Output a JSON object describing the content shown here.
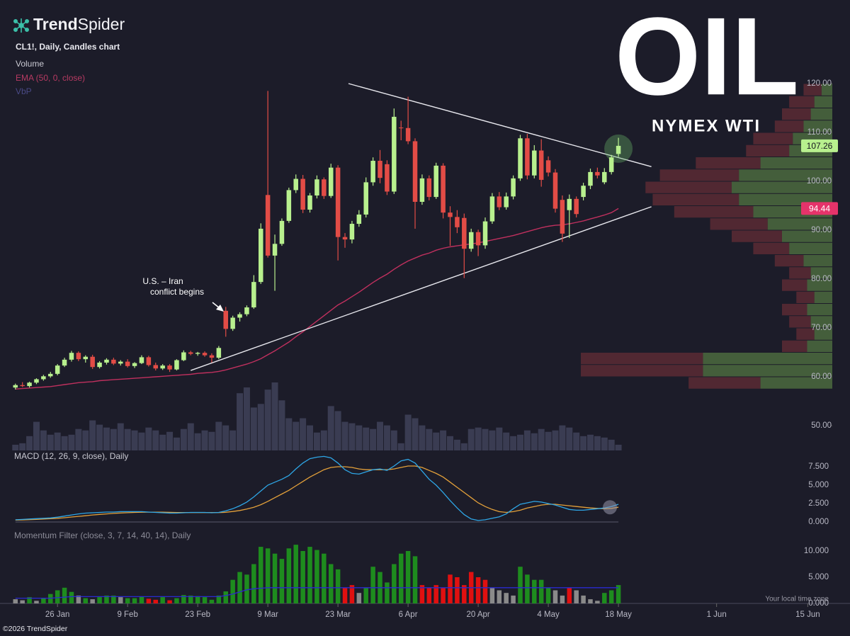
{
  "brand": {
    "bold": "Trend",
    "light": "Spider"
  },
  "badge": {
    "title": "OIL",
    "subtitle": "NYMEX WTI"
  },
  "copyright": "©2026 TrendSpider",
  "timezone_note": "Your local time zone",
  "chart_data": {
    "type": "candlestick",
    "title": "CL1!, Daily, Candles chart",
    "xlim": [
      -2.2,
      116.5
    ],
    "xticks": [
      {
        "value": 6,
        "label": "26 Jan"
      },
      {
        "value": 16,
        "label": "9 Feb"
      },
      {
        "value": 26,
        "label": "23 Feb"
      },
      {
        "value": 36,
        "label": "9 Mar"
      },
      {
        "value": 46,
        "label": "23 Mar"
      },
      {
        "value": 56,
        "label": "6 Apr"
      },
      {
        "value": 66,
        "label": "20 Apr"
      },
      {
        "value": 76,
        "label": "4 May"
      },
      {
        "value": 86,
        "label": "18 May"
      },
      {
        "value": 100,
        "label": "1 Jun"
      },
      {
        "value": 113,
        "label": "15 Jun"
      }
    ],
    "ylim": [
      48,
      128
    ],
    "yticks": [
      {
        "value": 50,
        "label": "50.00"
      },
      {
        "value": 60,
        "label": "60.00"
      },
      {
        "value": 70,
        "label": "70.00"
      },
      {
        "value": 80,
        "label": "80.00"
      },
      {
        "value": 90,
        "label": "90.00"
      },
      {
        "value": 100,
        "label": "100.00"
      },
      {
        "value": 110,
        "label": "110.00"
      },
      {
        "value": 120,
        "label": "120.00"
      }
    ],
    "candles": {
      "up_color": "#b8f08e",
      "down_color": "#e24c46",
      "tag_color": "#b8f08e",
      "open": [
        57.8,
        58.3,
        58.1,
        58.8,
        59.5,
        60.1,
        60.6,
        62.3,
        63.5,
        64.9,
        63.6,
        64.1,
        62.0,
        62.9,
        63.5,
        62.7,
        63.1,
        62.2,
        62.8,
        64.0,
        62.4,
        61.7,
        62.3,
        61.5,
        63.4,
        65.0,
        64.7,
        64.9,
        64.4,
        63.9,
        73.5,
        69.8,
        72.1,
        72.8,
        74.2,
        79.4,
        97.2,
        84.8,
        87.2,
        91.9,
        98.2,
        100.5,
        94.2,
        97.1,
        100.4,
        97.0,
        102.8,
        88.6,
        88.1,
        91.3,
        93.2,
        99.8,
        104.2,
        103.5,
        97.9,
        111.0,
        110.9,
        108.2,
        95.8,
        100.6,
        96.8,
        103.2,
        93.6,
        92.7,
        92.5,
        86.2,
        89.6,
        86.9,
        91.8,
        96.9,
        94.7,
        96.9,
        100.6,
        108.8,
        101.2,
        106.3,
        104.3,
        101.8,
        96.2,
        94.1,
        96.4,
        96.8,
        99.1,
        101.9,
        99.8,
        101.9,
        105.6
      ],
      "high": [
        58.6,
        58.9,
        59.0,
        59.7,
        60.4,
        61.0,
        62.6,
        63.9,
        65.3,
        65.2,
        64.4,
        64.5,
        63.2,
        63.8,
        63.9,
        63.4,
        63.6,
        63.0,
        64.4,
        64.3,
        62.9,
        62.6,
        62.6,
        63.6,
        65.4,
        65.3,
        65.1,
        65.2,
        64.8,
        66.3,
        74.3,
        72.5,
        73.2,
        74.6,
        80.8,
        91.4,
        118.5,
        89.1,
        92.4,
        98.7,
        101.4,
        101.3,
        97.6,
        101.2,
        100.8,
        103.6,
        103.3,
        89.4,
        91.9,
        94.1,
        100.8,
        104.9,
        106.4,
        104.3,
        114.9,
        112.4,
        117.3,
        108.8,
        101.4,
        101.2,
        103.8,
        103.7,
        94.9,
        94.1,
        93.4,
        90.3,
        90.1,
        92.6,
        97.6,
        97.8,
        97.7,
        101.2,
        109.5,
        109.7,
        107.4,
        108.6,
        105.1,
        102.5,
        97.1,
        97.3,
        96.9,
        99.7,
        102.6,
        102.8,
        102.7,
        105.4,
        108.9
      ],
      "low": [
        57.4,
        57.9,
        57.8,
        58.5,
        59.2,
        59.8,
        60.3,
        62.0,
        63.1,
        63.2,
        62.9,
        61.6,
        61.7,
        62.5,
        62.4,
        62.3,
        61.9,
        61.8,
        62.6,
        62.1,
        61.3,
        61.4,
        61.0,
        61.3,
        63.2,
        64.4,
        64.3,
        64.1,
        62.9,
        63.6,
        68.2,
        69.4,
        71.3,
        72.4,
        73.9,
        79.0,
        84.4,
        77.6,
        86.8,
        91.5,
        97.6,
        93.5,
        93.6,
        96.5,
        96.4,
        96.6,
        83.8,
        86.4,
        87.3,
        90.7,
        92.6,
        99.1,
        99.6,
        97.2,
        97.4,
        108.4,
        107.6,
        90.3,
        95.2,
        96.1,
        96.4,
        92.4,
        86.8,
        89.4,
        80.2,
        85.6,
        84.7,
        86.2,
        91.3,
        94.1,
        94.2,
        96.3,
        100.1,
        100.4,
        100.6,
        98.9,
        101.0,
        93.6,
        87.6,
        88.4,
        92.6,
        96.1,
        98.4,
        100.6,
        99.4,
        101.4,
        105.0
      ],
      "close": [
        58.3,
        58.1,
        58.8,
        59.5,
        60.1,
        60.6,
        62.3,
        63.5,
        64.9,
        63.6,
        64.1,
        62.0,
        62.9,
        63.5,
        62.7,
        63.1,
        62.2,
        62.8,
        64.0,
        62.4,
        61.7,
        62.3,
        61.5,
        63.4,
        65.0,
        64.7,
        64.9,
        64.4,
        63.9,
        65.9,
        69.8,
        72.1,
        72.8,
        74.2,
        79.4,
        90.3,
        84.8,
        87.2,
        91.9,
        98.2,
        100.5,
        94.2,
        97.1,
        100.4,
        97.0,
        102.8,
        88.6,
        88.1,
        91.3,
        93.2,
        99.8,
        104.2,
        100.7,
        97.9,
        113.2,
        110.9,
        108.2,
        95.8,
        100.6,
        96.8,
        103.2,
        93.6,
        92.7,
        90.6,
        86.2,
        89.6,
        86.9,
        91.8,
        96.9,
        94.7,
        96.9,
        100.6,
        108.8,
        101.2,
        106.3,
        100.3,
        101.8,
        94.4,
        89.3,
        96.4,
        93.3,
        99.1,
        101.9,
        101.2,
        101.9,
        104.9,
        107.26
      ]
    },
    "volume": {
      "name": "Volume",
      "color": "#3a3c52",
      "values": [
        8,
        10,
        20,
        40,
        28,
        22,
        25,
        20,
        22,
        30,
        28,
        42,
        36,
        32,
        30,
        38,
        30,
        28,
        25,
        32,
        28,
        22,
        26,
        18,
        30,
        38,
        24,
        28,
        26,
        40,
        35,
        28,
        80,
        88,
        60,
        65,
        85,
        95,
        70,
        45,
        40,
        45,
        35,
        25,
        28,
        62,
        55,
        40,
        38,
        35,
        32,
        30,
        40,
        35,
        28,
        10,
        50,
        45,
        35,
        30,
        25,
        28,
        20,
        15,
        10,
        30,
        32,
        30,
        28,
        32,
        25,
        20,
        22,
        28,
        24,
        30,
        26,
        28,
        35,
        32,
        25,
        20,
        22,
        20,
        18,
        15,
        8
      ]
    },
    "ema": {
      "name": "EMA (50, 0, close)",
      "color": "#c0305e",
      "tag_color": "#e5336a",
      "values": [
        57.5,
        57.6,
        57.7,
        57.8,
        57.9,
        58.0,
        58.2,
        58.4,
        58.6,
        58.8,
        58.9,
        59.0,
        59.2,
        59.3,
        59.4,
        59.5,
        59.6,
        59.7,
        59.8,
        59.9,
        60.0,
        60.1,
        60.2,
        60.3,
        60.4,
        60.5,
        60.7,
        60.8,
        60.9,
        61.1,
        61.4,
        61.8,
        62.2,
        62.6,
        63.1,
        63.7,
        64.5,
        65.3,
        66.2,
        67.1,
        68.2,
        69.2,
        70.3,
        71.4,
        72.5,
        73.6,
        74.7,
        75.5,
        76.4,
        77.3,
        78.3,
        79.3,
        80.2,
        81.0,
        82.0,
        82.9,
        83.7,
        84.3,
        84.9,
        85.3,
        85.9,
        86.3,
        86.6,
        86.8,
        87.0,
        87.2,
        87.4,
        87.7,
        88.0,
        88.3,
        88.6,
        88.9,
        89.3,
        89.7,
        90.1,
        90.5,
        90.8,
        91.0,
        91.1,
        91.3,
        91.6,
        91.9,
        92.3,
        92.7,
        93.1,
        93.6,
        94.44
      ]
    },
    "vbp": {
      "name": "VbP",
      "up_color": "#4b6a3e",
      "down_color": "#5a2a34",
      "prices": [
        118.75,
        116.25,
        113.75,
        111.25,
        108.75,
        106.25,
        103.75,
        101.25,
        98.75,
        96.25,
        93.75,
        91.25,
        88.75,
        86.25,
        83.75,
        81.25,
        78.75,
        76.25,
        73.75,
        71.25,
        68.75,
        66.25,
        63.75,
        61.25,
        58.75
      ],
      "up": [
        15,
        25,
        30,
        40,
        55,
        60,
        100,
        130,
        140,
        130,
        110,
        90,
        70,
        60,
        40,
        30,
        35,
        25,
        35,
        30,
        25,
        35,
        180,
        180,
        100
      ],
      "down": [
        25,
        35,
        40,
        40,
        55,
        60,
        90,
        110,
        120,
        120,
        110,
        80,
        70,
        50,
        40,
        30,
        35,
        25,
        35,
        30,
        25,
        35,
        170,
        170,
        100
      ]
    },
    "trendlines": [
      {
        "color": "#e8e8ee",
        "x": [
          47.5,
          90.7
        ],
        "y": [
          120,
          103
        ]
      },
      {
        "color": "#e8e8ee",
        "x": [
          25,
          90.7
        ],
        "y": [
          61.3,
          94.8
        ]
      }
    ],
    "annotation": [
      "U.S. – Iran",
      "conflict begins"
    ],
    "macd": {
      "title": "MACD (12, 26, 9, close), Daily",
      "ylim": [
        -0.5,
        9
      ],
      "yticks": [
        {
          "value": 0,
          "label": "0.000"
        },
        {
          "value": 2.5,
          "label": "2.500"
        },
        {
          "value": 5,
          "label": "5.000"
        },
        {
          "value": 7.5,
          "label": "7.500"
        }
      ],
      "series": [
        {
          "color": "#2ea6e6",
          "values": [
            0.3,
            0.35,
            0.4,
            0.45,
            0.5,
            0.55,
            0.65,
            0.8,
            0.95,
            1.1,
            1.2,
            1.25,
            1.3,
            1.35,
            1.35,
            1.4,
            1.4,
            1.4,
            1.4,
            1.35,
            1.3,
            1.25,
            1.2,
            1.2,
            1.25,
            1.3,
            1.3,
            1.3,
            1.25,
            1.3,
            1.5,
            1.8,
            2.2,
            2.7,
            3.4,
            4.2,
            5.0,
            5.4,
            5.8,
            6.3,
            7.2,
            8.0,
            8.6,
            8.8,
            8.9,
            8.7,
            8.0,
            7.1,
            6.6,
            6.5,
            6.8,
            7.1,
            7.2,
            7.0,
            7.6,
            8.3,
            8.5,
            8.0,
            6.9,
            5.8,
            5.0,
            4.0,
            2.9,
            1.9,
            1.0,
            0.4,
            0.2,
            0.3,
            0.5,
            0.7,
            1.1,
            1.8,
            2.4,
            2.6,
            2.8,
            2.7,
            2.5,
            2.3,
            2.0,
            1.7,
            1.6,
            1.6,
            1.7,
            1.8,
            1.9,
            2.1,
            2.4
          ]
        },
        {
          "color": "#e3a03a",
          "values": [
            0.25,
            0.28,
            0.32,
            0.36,
            0.4,
            0.45,
            0.5,
            0.58,
            0.67,
            0.76,
            0.85,
            0.95,
            1.03,
            1.1,
            1.16,
            1.22,
            1.26,
            1.3,
            1.33,
            1.34,
            1.34,
            1.33,
            1.31,
            1.29,
            1.28,
            1.28,
            1.28,
            1.28,
            1.28,
            1.28,
            1.32,
            1.42,
            1.56,
            1.75,
            2.0,
            2.35,
            2.8,
            3.3,
            3.8,
            4.3,
            4.9,
            5.5,
            6.1,
            6.6,
            7.1,
            7.4,
            7.5,
            7.5,
            7.4,
            7.2,
            7.1,
            7.1,
            7.1,
            7.1,
            7.2,
            7.4,
            7.6,
            7.6,
            7.4,
            7.0,
            6.6,
            6.1,
            5.4,
            4.7,
            4.0,
            3.3,
            2.6,
            2.1,
            1.7,
            1.4,
            1.3,
            1.4,
            1.6,
            1.9,
            2.1,
            2.3,
            2.4,
            2.4,
            2.3,
            2.2,
            2.1,
            2.0,
            1.9,
            1.85,
            1.8,
            1.85,
            2.0
          ]
        }
      ]
    },
    "momentum": {
      "title": "Momentum Filter (close, 3, 7, 14, 40, 14), Daily",
      "ylim": [
        0,
        13
      ],
      "yticks": [
        {
          "value": 0,
          "label": "0.000"
        },
        {
          "value": 5,
          "label": "5.000"
        },
        {
          "value": 10,
          "label": "10.000"
        }
      ],
      "values": [
        0.8,
        0.6,
        1.2,
        0.5,
        1.0,
        1.8,
        2.5,
        3.0,
        2.2,
        1.5,
        1.0,
        0.8,
        1.2,
        1.5,
        1.5,
        1.2,
        1.0,
        1.0,
        1.3,
        0.9,
        0.7,
        1.2,
        0.6,
        1.0,
        1.6,
        1.5,
        1.4,
        1.2,
        0.7,
        1.5,
        2.3,
        4.5,
        6.0,
        5.5,
        7.5,
        10.8,
        10.5,
        9.5,
        8.5,
        10.5,
        11.2,
        10.0,
        10.8,
        10.2,
        9.5,
        7.5,
        6.5,
        3.0,
        3.5,
        2.0,
        3.0,
        7.0,
        6.0,
        4.0,
        7.5,
        9.5,
        10.0,
        9.0,
        3.5,
        3.0,
        3.5,
        3.0,
        5.5,
        5.0,
        3.5,
        6.0,
        5.0,
        4.5,
        3.0,
        2.5,
        2.0,
        1.5,
        7.0,
        5.5,
        4.5,
        4.5,
        3.0,
        2.5,
        1.5,
        3.0,
        2.5,
        1.5,
        0.8,
        0.5,
        2.0,
        2.5,
        3.5
      ],
      "colors": [
        "#8a8a8a",
        "#8a8a8a",
        "#1e8c1e",
        "#8a8a8a",
        "#1e8c1e",
        "#1e8c1e",
        "#1e8c1e",
        "#1e8c1e",
        "#1e8c1e",
        "#8a8a8a",
        "#1e8c1e",
        "#8a8a8a",
        "#1e8c1e",
        "#1e8c1e",
        "#1e8c1e",
        "#8a8a8a",
        "#1e8c1e",
        "#1e8c1e",
        "#1e8c1e",
        "#e01010",
        "#e01010",
        "#1e8c1e",
        "#e01010",
        "#1e8c1e",
        "#1e8c1e",
        "#1e8c1e",
        "#1e8c1e",
        "#1e8c1e",
        "#1e8c1e",
        "#1e8c1e",
        "#1e8c1e",
        "#1e8c1e",
        "#1e8c1e",
        "#1e8c1e",
        "#1e8c1e",
        "#1e8c1e",
        "#1e8c1e",
        "#1e8c1e",
        "#1e8c1e",
        "#1e8c1e",
        "#1e8c1e",
        "#1e8c1e",
        "#1e8c1e",
        "#1e8c1e",
        "#1e8c1e",
        "#1e8c1e",
        "#1e8c1e",
        "#e01010",
        "#e01010",
        "#8a8a8a",
        "#1e8c1e",
        "#1e8c1e",
        "#1e8c1e",
        "#1e8c1e",
        "#1e8c1e",
        "#1e8c1e",
        "#1e8c1e",
        "#1e8c1e",
        "#e01010",
        "#e01010",
        "#e01010",
        "#e01010",
        "#e01010",
        "#e01010",
        "#e01010",
        "#e01010",
        "#e01010",
        "#e01010",
        "#8a8a8a",
        "#8a8a8a",
        "#8a8a8a",
        "#8a8a8a",
        "#1e8c1e",
        "#1e8c1e",
        "#1e8c1e",
        "#1e8c1e",
        "#1e8c1e",
        "#8a8a8a",
        "#8a8a8a",
        "#e01010",
        "#8a8a8a",
        "#8a8a8a",
        "#8a8a8a",
        "#8a8a8a",
        "#1e8c1e",
        "#1e8c1e",
        "#1e8c1e"
      ],
      "line": {
        "color": "#2a2ad0",
        "values": [
          1.0,
          1.0,
          1.0,
          1.0,
          1.0,
          1.0,
          1.1,
          1.2,
          1.3,
          1.3,
          1.3,
          1.3,
          1.3,
          1.3,
          1.3,
          1.3,
          1.3,
          1.3,
          1.3,
          1.3,
          1.3,
          1.3,
          1.3,
          1.3,
          1.3,
          1.3,
          1.3,
          1.3,
          1.3,
          1.3,
          1.5,
          1.8,
          2.2,
          2.6,
          2.8,
          2.9,
          3.0,
          3.0,
          3.0,
          3.0,
          3.0,
          3.0,
          3.0,
          3.0,
          3.0,
          3.0,
          3.0,
          3.0,
          3.0,
          3.0,
          3.0,
          3.0,
          3.0,
          3.0,
          3.0,
          3.0,
          3.0,
          3.0,
          3.0,
          3.0,
          3.0,
          3.0,
          3.0,
          3.0,
          3.0,
          3.0,
          3.0,
          3.0,
          3.0,
          3.0,
          3.0,
          3.0,
          3.0,
          3.0,
          3.0,
          3.0,
          3.0,
          3.0,
          3.0,
          3.0,
          3.0,
          3.0,
          3.0,
          3.0,
          3.0,
          3.0,
          3.0
        ]
      }
    }
  }
}
